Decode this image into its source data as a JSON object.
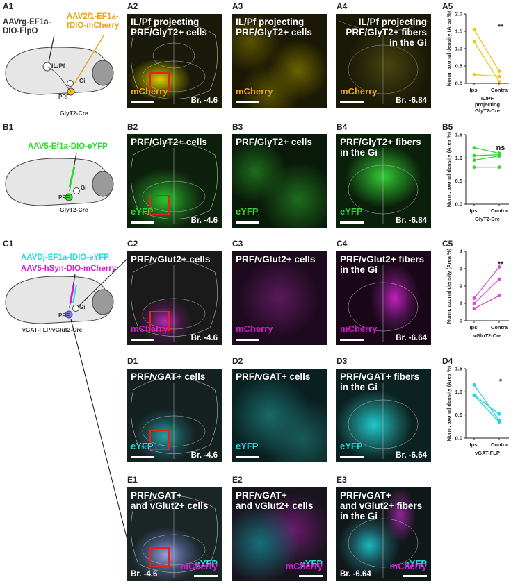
{
  "row_labels": {
    "A1": "A1",
    "A2": "A2",
    "A3": "A3",
    "A4": "A4",
    "A5": "A5",
    "B1": "B1",
    "B2": "B2",
    "B3": "B3",
    "B4": "B4",
    "B5": "B5",
    "C1": "C1",
    "C2": "C2",
    "C3": "C3",
    "C4": "C4",
    "C5": "C5",
    "D1": "D1",
    "D2": "D2",
    "D3": "D3",
    "D4": "D4",
    "E1": "E1",
    "E2": "E2",
    "E3": "E3"
  },
  "schematics": {
    "a": {
      "virus1": "AAVrg-EF1a-\nDIO-FlpO",
      "virus2": "AAV2/1-EF1a-\nfDIO-mCherry",
      "region1": "IL/Pf",
      "region2": "Gi",
      "region3": "PRF",
      "genotype": "GlyT2-Cre"
    },
    "b": {
      "virus1": "AAV5-Ef1a-DIO-eYFP",
      "region2": "Gi",
      "region3": "PRF",
      "genotype": "GlyT2-Cre"
    },
    "c": {
      "virus1": "AAVDj-EF1a-fDIO-eYFP",
      "virus2": "AAV5-hSyn-DIO-mCherry",
      "region2": "Gi",
      "region3": "PRF",
      "genotype": "vGAT-FLP/vGlut2-Cre"
    }
  },
  "panels": {
    "A2": {
      "title": "IL/Pf projecting\nPRF/GlyT2+ cells",
      "marker": "mCherry",
      "br": "Br. -4.6"
    },
    "A3": {
      "title": "IL/Pf projecting\nPRF/GlyT2+ cells",
      "marker": "mCherry"
    },
    "A4": {
      "title": "IL/Pf projecting\nPRF/GlyT2+ fibers\nin the Gi",
      "marker": "mCherry",
      "br": "Br. -6.84"
    },
    "B2": {
      "title": "PRF/GlyT2+ cells",
      "marker": "eYFP",
      "br": "Br. -4.6"
    },
    "B3": {
      "title": "PRF/GlyT2+ cells",
      "marker": "eYFP"
    },
    "B4": {
      "title": "PRF/GlyT2+ fibers\nin the Gi",
      "marker": "eYFP",
      "br": "Br. -6.84"
    },
    "C2": {
      "title": "PRF/vGlut2+ cells",
      "marker": "mCherry",
      "br": "Br. -4.6"
    },
    "C3": {
      "title": "PRF/vGlut2+ cells",
      "marker": "mCherry"
    },
    "C4": {
      "title": "PRF/vGlut2+ fibers\nin the Gi",
      "marker": "mCherry",
      "br": "Br. -6.64"
    },
    "D1": {
      "title": "PRF/vGAT+ cells",
      "marker": "eYFP",
      "br": "Br. -4.6"
    },
    "D2": {
      "title": "PRF/vGAT+ cells",
      "marker": "eYFP"
    },
    "D3": {
      "title": "PRF/vGAT+ fibers\nin the Gi",
      "marker": "eYFP",
      "br": "Br. -6.64"
    },
    "E1": {
      "title": "PRF/vGAT+\nand vGlut2+ cells",
      "marker1": "eYFP",
      "marker2": "mCherry",
      "br": "Br. -4.6"
    },
    "E2": {
      "title": "PRF/vGAT+\nand vGlut2+ cells",
      "marker1": "eYFP",
      "marker2": "mCherry"
    },
    "E3": {
      "title": "PRF/vGAT+\nand vGlut2+ fibers\nin the Gi",
      "marker1": "eYFP",
      "marker2": "mCherry",
      "br": "Br. -6.64"
    }
  },
  "colors": {
    "yellow": "#f2d21b",
    "green": "#2fd92f",
    "magenta": "#d91ad9",
    "cyan": "#1fe0e0",
    "orange": "#e8a317"
  },
  "chart_data": [
    {
      "id": "A5",
      "type": "line",
      "ylabel": "Norm. axonal density (Area %)",
      "categories": [
        "Ipsi",
        "Contra"
      ],
      "xlabel": "IL/PF\nprojecting\nGlyT2-Cre",
      "yticks": [
        "0.0",
        "0.5",
        "1.0",
        "1.5",
        "2.0"
      ],
      "ylim": [
        0,
        2
      ],
      "significance": "**",
      "color": "#f2c418",
      "series": [
        {
          "values": [
            1.55,
            0.35
          ]
        },
        {
          "values": [
            1.2,
            0.05
          ]
        },
        {
          "values": [
            0.25,
            0.2
          ]
        }
      ]
    },
    {
      "id": "B5",
      "type": "line",
      "ylabel": "Norm. axonal density (Area %)",
      "categories": [
        "Ipsi",
        "Contra"
      ],
      "xlabel": "GlyT2-Cre",
      "yticks": [
        "0.0",
        "0.5",
        "1.0",
        "1.5"
      ],
      "ylim": [
        0,
        1.5
      ],
      "significance": "ns",
      "color": "#2fd92f",
      "series": [
        {
          "values": [
            1.22,
            1.1
          ]
        },
        {
          "values": [
            1.05,
            1.07
          ]
        },
        {
          "values": [
            0.95,
            1.04
          ]
        },
        {
          "values": [
            0.8,
            0.8
          ]
        }
      ]
    },
    {
      "id": "C5",
      "type": "line",
      "ylabel": "Norm. axonal density (Area %)",
      "categories": [
        "Ipsi",
        "Contra"
      ],
      "xlabel": "vGluT2-Cre",
      "yticks": [
        "0",
        "1",
        "2",
        "3",
        "4"
      ],
      "ylim": [
        0,
        4
      ],
      "significance": "**",
      "color": "#d94ad9",
      "series": [
        {
          "values": [
            1.3,
            3.1
          ]
        },
        {
          "values": [
            1.0,
            2.4
          ]
        },
        {
          "values": [
            0.7,
            1.45
          ]
        }
      ]
    },
    {
      "id": "D4",
      "type": "line",
      "ylabel": "Norm. axonal density (Area %)",
      "categories": [
        "Ipsi",
        "Contra"
      ],
      "xlabel": "vGAT-FLP",
      "yticks": [
        "0.0",
        "0.5",
        "1.0",
        "1.5"
      ],
      "ylim": [
        0,
        1.5
      ],
      "significance": "*",
      "color": "#1fd0e8",
      "series": [
        {
          "values": [
            1.15,
            0.38
          ]
        },
        {
          "values": [
            0.93,
            0.52
          ]
        },
        {
          "values": [
            0.92,
            0.35
          ]
        }
      ]
    }
  ]
}
